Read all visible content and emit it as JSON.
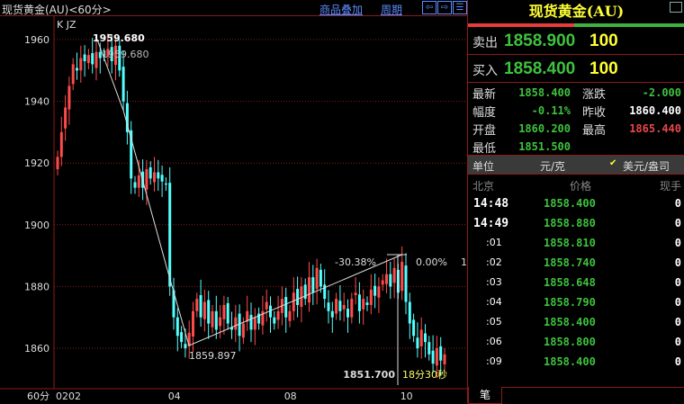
{
  "header": {
    "title": "现货黄金(AU)<60分>",
    "overlay_link": "商品叠加",
    "period_link": "周期",
    "buttons": [
      "left-arrow",
      "right-arrow",
      "layout"
    ]
  },
  "chart_data": {
    "type": "candlestick",
    "indicator_label": "K  JZ",
    "y_ticks": [
      1960,
      1940,
      1920,
      1900,
      1880,
      1860
    ],
    "ylim": [
      1848,
      1968
    ],
    "x_labels": [
      {
        "label": "0202",
        "index": 0
      },
      {
        "label": "04",
        "index": 29
      },
      {
        "label": "08",
        "index": 59
      },
      {
        "label": "10",
        "index": 89
      }
    ],
    "period_label": "60分",
    "closes": [
      1922,
      1930,
      1938,
      1945,
      1952,
      1950,
      1954,
      1953,
      1955,
      1952,
      1956,
      1954,
      1955,
      1957,
      1953,
      1958,
      1950,
      1940,
      1930,
      1915,
      1912,
      1916,
      1912,
      1918,
      1915,
      1917,
      1915,
      1914,
      1913,
      1880,
      1870,
      1864,
      1862,
      1860,
      1865,
      1872,
      1876,
      1870,
      1875,
      1868,
      1872,
      1866,
      1870,
      1874,
      1868,
      1866,
      1870,
      1864,
      1868,
      1872,
      1866,
      1870,
      1868,
      1872,
      1875,
      1870,
      1868,
      1872,
      1876,
      1870,
      1872,
      1878,
      1874,
      1880,
      1876,
      1883,
      1878,
      1886,
      1880,
      1876,
      1872,
      1870,
      1876,
      1872,
      1874,
      1870,
      1876,
      1878,
      1872,
      1876,
      1874,
      1879,
      1877,
      1880,
      1882,
      1884,
      1880,
      1886,
      1878,
      1888,
      1875,
      1868,
      1864,
      1860,
      1866,
      1862,
      1858,
      1855,
      1860,
      1856,
      1858
    ],
    "annotations": {
      "high_label": "1959.680",
      "high_label_shadow": "1959.680",
      "low_label": "1859.897",
      "line_pct": "-30.38%",
      "right_pct": "0.00%",
      "right_edge": "1",
      "cursor_price": "1851.700",
      "countdown": "18分30秒"
    }
  },
  "quote": {
    "title": "现货黄金(AU)",
    "sell_label": "卖出",
    "sell_price": "1858.900",
    "sell_vol": "100",
    "buy_label": "买入",
    "buy_price": "1858.400",
    "buy_vol": "100",
    "stats": [
      {
        "label": "最新",
        "value": "1858.400",
        "color": "g"
      },
      {
        "label": "涨跌",
        "value": "-2.000",
        "color": "g"
      },
      {
        "label": "幅度",
        "value": "-0.11%",
        "color": "g"
      },
      {
        "label": "昨收",
        "value": "1860.400",
        "color": "w"
      },
      {
        "label": "开盘",
        "value": "1860.200",
        "color": "g"
      },
      {
        "label": "最高",
        "value": "1865.440",
        "color": "r"
      },
      {
        "label": "最低",
        "value": "1851.500",
        "color": "g"
      }
    ],
    "unit_label": "单位",
    "unit_option1": "元/克",
    "unit_option2": "美元/盎司",
    "ticks_header": {
      "place": "北京",
      "price": "价格",
      "vol": "现手"
    },
    "ticks": [
      {
        "time": "14:48",
        "price": "1858.400",
        "vol": "0"
      },
      {
        "time": "14:49",
        "price": "1858.880",
        "vol": "0"
      },
      {
        "time": ":01",
        "price": "1858.810",
        "vol": "0"
      },
      {
        "time": ":02",
        "price": "1858.740",
        "vol": "0"
      },
      {
        "time": ":03",
        "price": "1858.648",
        "vol": "0"
      },
      {
        "time": ":04",
        "price": "1858.790",
        "vol": "0"
      },
      {
        "time": ":05",
        "price": "1858.400",
        "vol": "0"
      },
      {
        "time": ":06",
        "price": "1858.800",
        "vol": "0"
      },
      {
        "time": ":09",
        "price": "1858.400",
        "vol": "0"
      }
    ],
    "tab_label": "笔"
  },
  "colors": {
    "up": "#ff4a4a",
    "down": "#54ffff",
    "grid": "#8b1a1a"
  }
}
